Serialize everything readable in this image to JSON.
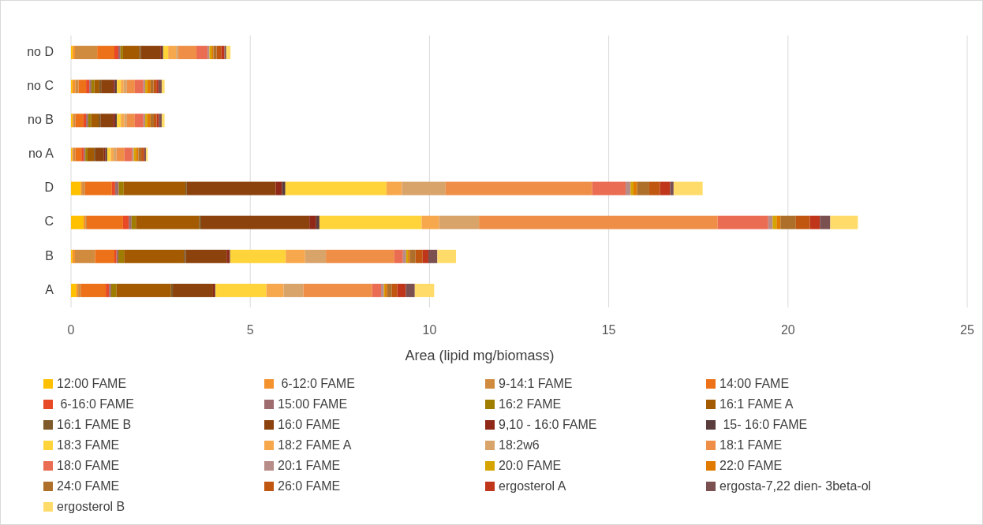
{
  "chart_data": {
    "type": "bar",
    "orientation": "horizontal",
    "stacked": true,
    "xlabel": "Area (lipid mg/biomass)",
    "categories": [
      "no D",
      "no C",
      "no B",
      "no A",
      "D",
      "C",
      "B",
      "A"
    ],
    "xlim": [
      0,
      25
    ],
    "xticks": [
      0,
      5,
      10,
      15,
      20,
      25
    ],
    "grid": "x",
    "legend": "bottom",
    "series": [
      {
        "name": "12:00 FAME",
        "color": "#ffc000",
        "values": [
          0.05,
          0.04,
          0.04,
          0.03,
          0.27,
          0.35,
          0.04,
          0.15
        ]
      },
      {
        "name": " 6-12:0 FAME",
        "color": "#f4922e",
        "values": [
          0.06,
          0.08,
          0.03,
          0.03,
          0.04,
          0.05,
          0.07,
          0.05
        ]
      },
      {
        "name": "9-14:1 FAME",
        "color": "#d08b3f",
        "values": [
          0.62,
          0.09,
          0.05,
          0.06,
          0.08,
          0.04,
          0.56,
          0.07
        ]
      },
      {
        "name": "14:00 FAME",
        "color": "#ed7118",
        "values": [
          0.48,
          0.21,
          0.23,
          0.17,
          0.75,
          1.01,
          0.54,
          0.7
        ]
      },
      {
        "name": " 6-16:0 FAME",
        "color": "#e84a27",
        "values": [
          0.11,
          0.09,
          0.07,
          0.07,
          0.09,
          0.16,
          0.06,
          0.09
        ]
      },
      {
        "name": "15:00 FAME",
        "color": "#9e6b6f",
        "values": [
          0.06,
          0.06,
          0.06,
          0.04,
          0.1,
          0.08,
          0.05,
          0.06
        ]
      },
      {
        "name": "16:2 FAME",
        "color": "#9e7d00",
        "values": [
          0.07,
          0.08,
          0.08,
          0.06,
          0.14,
          0.12,
          0.16,
          0.15
        ]
      },
      {
        "name": "16:1 FAME A",
        "color": "#a35a00",
        "values": [
          0.46,
          0.14,
          0.21,
          0.18,
          1.72,
          1.77,
          1.67,
          1.52
        ]
      },
      {
        "name": "16:1 FAME B",
        "color": "#7f5a2a",
        "values": [
          0.04,
          0.05,
          0.05,
          0.04,
          0.04,
          0.05,
          0.05,
          0.05
        ]
      },
      {
        "name": "16:0 FAME",
        "color": "#8c420c",
        "values": [
          0.54,
          0.33,
          0.35,
          0.24,
          2.48,
          3.02,
          1.14,
          1.12
        ]
      },
      {
        "name": "9,10 - 16:0 FAME",
        "color": "#8f2817",
        "values": [
          0.04,
          0.05,
          0.06,
          0.04,
          0.18,
          0.19,
          0.08,
          0.05
        ]
      },
      {
        "name": " 15- 16:0 FAME",
        "color": "#5a3c3c",
        "values": [
          0.04,
          0.06,
          0.05,
          0.05,
          0.09,
          0.09,
          0.02,
          0.02
        ]
      },
      {
        "name": "18:3 FAME",
        "color": "#ffd43b",
        "values": [
          0.14,
          0.11,
          0.11,
          0.1,
          2.82,
          2.85,
          1.55,
          1.42
        ]
      },
      {
        "name": "18:2 FAME A",
        "color": "#f8a84c",
        "values": [
          0.22,
          0.08,
          0.1,
          0.08,
          0.43,
          0.49,
          0.54,
          0.48
        ]
      },
      {
        "name": "18:2w6",
        "color": "#d9a46a",
        "values": [
          0.06,
          0.09,
          0.07,
          0.08,
          1.22,
          1.11,
          0.58,
          0.55
        ]
      },
      {
        "name": "18:1 FAME",
        "color": "#ef8f47",
        "values": [
          0.51,
          0.22,
          0.22,
          0.22,
          4.09,
          6.66,
          1.91,
          1.92
        ]
      },
      {
        "name": "18:0 FAME",
        "color": "#ea6c52",
        "values": [
          0.31,
          0.24,
          0.24,
          0.22,
          0.93,
          1.41,
          0.24,
          0.25
        ]
      },
      {
        "name": "20:1 FAME",
        "color": "#b88c88",
        "values": [
          0.05,
          0.05,
          0.05,
          0.04,
          0.14,
          0.12,
          0.09,
          0.08
        ]
      },
      {
        "name": "20:0 FAME",
        "color": "#d6a400",
        "values": [
          0.06,
          0.06,
          0.06,
          0.06,
          0.08,
          0.11,
          0.05,
          0.03
        ]
      },
      {
        "name": "22:0 FAME",
        "color": "#e07b00",
        "values": [
          0.05,
          0.09,
          0.09,
          0.07,
          0.1,
          0.11,
          0.05,
          0.06
        ]
      },
      {
        "name": "24:0 FAME",
        "color": "#ad6f2a",
        "values": [
          0.09,
          0.08,
          0.09,
          0.08,
          0.34,
          0.43,
          0.16,
          0.13
        ]
      },
      {
        "name": "26:0 FAME",
        "color": "#c0560f",
        "values": [
          0.13,
          0.08,
          0.08,
          0.06,
          0.3,
          0.39,
          0.2,
          0.15
        ]
      },
      {
        "name": "ergosterol A",
        "color": "#c0361a",
        "values": [
          0.09,
          0.06,
          0.06,
          0.03,
          0.28,
          0.28,
          0.16,
          0.24
        ]
      },
      {
        "name": "ergosta-7,22 dien- 3beta-ol",
        "color": "#7a5050",
        "values": [
          0.05,
          0.09,
          0.08,
          0.04,
          0.1,
          0.29,
          0.25,
          0.25
        ]
      },
      {
        "name": "ergosterol B",
        "color": "#ffdc6a",
        "values": [
          0.12,
          0.08,
          0.08,
          0.05,
          0.81,
          0.77,
          0.52,
          0.54
        ]
      }
    ]
  }
}
